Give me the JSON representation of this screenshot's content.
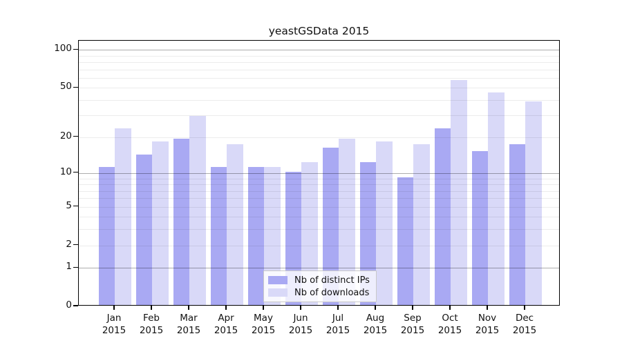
{
  "chart_data": {
    "type": "bar",
    "title": "yeastGSData 2015",
    "categories": [
      "Jan",
      "Feb",
      "Mar",
      "Apr",
      "May",
      "Jun",
      "Jul",
      "Aug",
      "Sep",
      "Oct",
      "Nov",
      "Dec"
    ],
    "year_label": "2015",
    "series": [
      {
        "name": "Nb of distinct IPs",
        "color": "#a9a9f3",
        "values": [
          11,
          14,
          19,
          11,
          11,
          10,
          16,
          12,
          9,
          23,
          15,
          17
        ]
      },
      {
        "name": "Nb of downloads",
        "color": "#d9d9f8",
        "values": [
          23,
          18,
          29,
          17,
          11,
          12,
          19,
          18,
          17,
          56,
          45,
          38
        ]
      }
    ],
    "xlabel": "",
    "ylabel": "",
    "y_scale": "log10(1+v)",
    "ylim": [
      0,
      118
    ],
    "y_ticks": [
      {
        "label": "100",
        "value": 100
      },
      {
        "label": "50",
        "value": 50
      },
      {
        "label": "20",
        "value": 20
      },
      {
        "label": "10",
        "value": 10
      },
      {
        "label": "5",
        "value": 5
      },
      {
        "label": "2",
        "value": 2
      },
      {
        "label": "1",
        "value": 1
      },
      {
        "label": "0",
        "value": 0
      }
    ],
    "major_gridlines": [
      1,
      10,
      100
    ],
    "minor_gridlines": [
      2,
      3,
      4,
      5,
      6,
      7,
      8,
      9,
      20,
      30,
      40,
      50,
      60,
      70,
      80,
      90
    ],
    "grid": "on",
    "legend_position": "bottom-center-inside"
  }
}
